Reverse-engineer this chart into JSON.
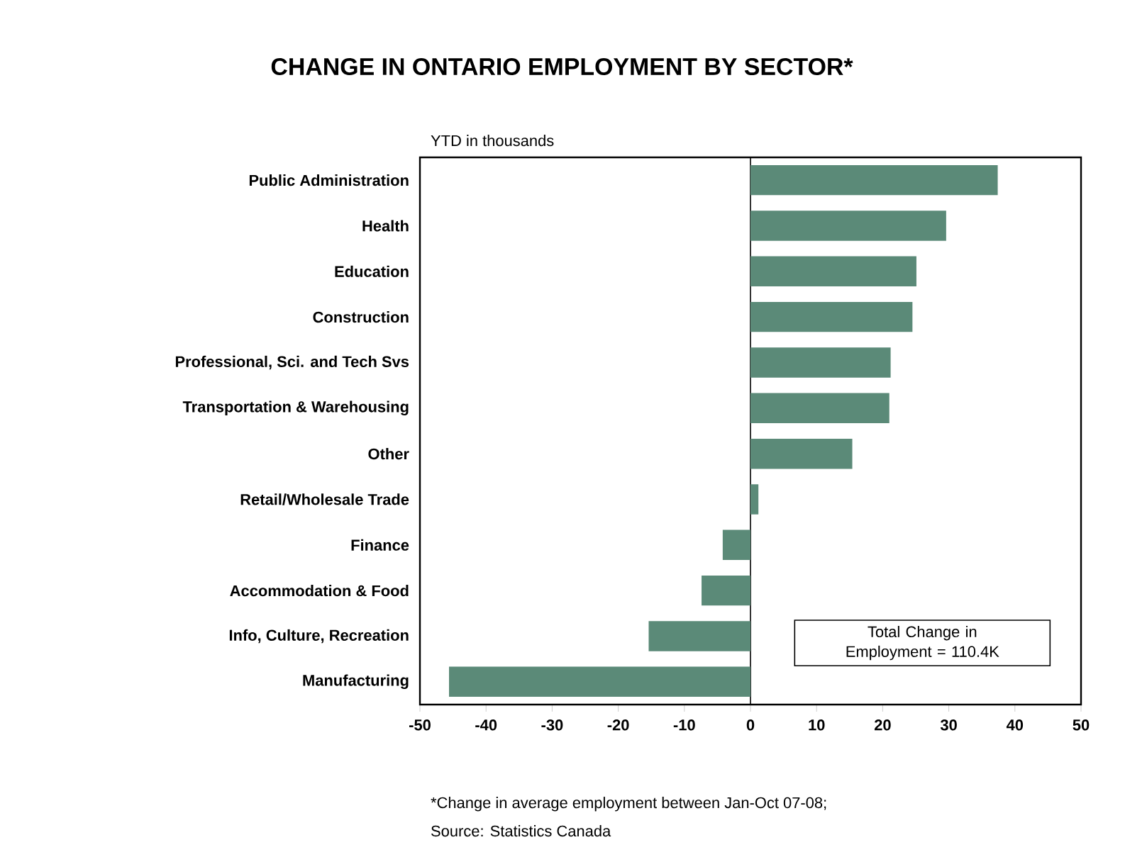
{
  "chart_data": {
    "type": "bar",
    "orientation": "horizontal",
    "title": "CHANGE IN ONTARIO EMPLOYMENT BY SECTOR*",
    "xlabel": "YTD in thousands",
    "categories": [
      "Public Administration",
      "Health",
      "Education",
      "Construction",
      "Professional, Sci. and Tech Svs",
      "Transportation & Warehousing",
      "Other",
      "Retail/Wholesale Trade",
      "Finance",
      "Accommodation & Food",
      "Info, Culture, Recreation",
      "Manufacturing"
    ],
    "values": [
      37.4,
      29.6,
      25.1,
      24.5,
      21.2,
      21.0,
      15.4,
      1.2,
      -4.2,
      -7.4,
      -15.4,
      -45.6
    ],
    "color": "#5b8a78",
    "xlim": [
      -50,
      50
    ],
    "xticks": [
      -50,
      -40,
      -30,
      -20,
      -10,
      0,
      10,
      20,
      30,
      40,
      50
    ],
    "annotations": [
      "Total Change in Employment = 110.4K",
      "*Change in average employment between Jan-Oct 07-08;",
      "Source: Statistics Canada"
    ]
  }
}
